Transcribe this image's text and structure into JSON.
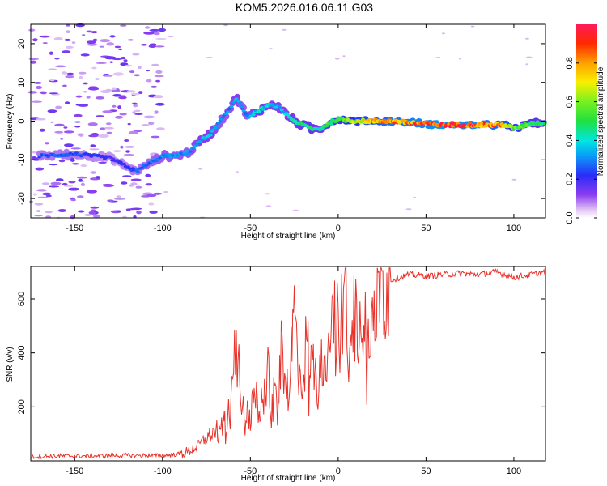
{
  "title": "KOM5.2026.016.06.11.G03",
  "chart_data": [
    {
      "type": "heatmap",
      "name": "spectrogram",
      "xlabel": "Height of straight line (km)",
      "ylabel": "Frequency (Hz)",
      "xlim": [
        -175,
        118
      ],
      "ylim": [
        -25,
        25
      ],
      "xticks": [
        -150,
        -100,
        -50,
        0,
        50,
        100
      ],
      "yticks": [
        -20,
        -10,
        0,
        10,
        20
      ],
      "ridge": {
        "x": [
          -170,
          -150,
          -130,
          -115,
          -100,
          -92,
          -85,
          -78,
          -72,
          -67,
          -62,
          -58,
          -55,
          -52,
          -48,
          -44,
          -40,
          -35,
          -30,
          -25,
          -20,
          -15,
          -10,
          -7,
          -3,
          0,
          10,
          30,
          60,
          80,
          95,
          100,
          110,
          118
        ],
        "y": [
          -9,
          -8.5,
          -9.5,
          -13,
          -9,
          -9,
          -8,
          -5,
          -3,
          0,
          3,
          6,
          4,
          1,
          2,
          3,
          4,
          4,
          2,
          0,
          -1,
          -2,
          -2,
          -1,
          0,
          0.5,
          0,
          0,
          -1,
          -1,
          -1,
          -2,
          -0.5,
          -0.5
        ],
        "amplitude": [
          0.25,
          0.25,
          0.2,
          0.25,
          0.3,
          0.3,
          0.3,
          0.35,
          0.35,
          0.3,
          0.3,
          0.35,
          0.3,
          0.3,
          0.35,
          0.4,
          0.35,
          0.35,
          0.35,
          0.4,
          0.45,
          0.45,
          0.4,
          0.5,
          0.5,
          0.55,
          0.65,
          0.8,
          0.9,
          0.85,
          0.75,
          0.55,
          0.5,
          0.45
        ]
      },
      "colorbar": {
        "label": "Normalized spectral amplitude",
        "range": [
          0,
          1
        ],
        "ticks": [
          "0.0",
          "0.2",
          "0.4",
          "0.6",
          "0.8"
        ]
      }
    },
    {
      "type": "line",
      "name": "snr",
      "xlabel": "Height of straight line (km)",
      "ylabel": "SNR (v/v)",
      "xlim": [
        -175,
        118
      ],
      "ylim": [
        0,
        720
      ],
      "xticks": [
        -150,
        -100,
        -50,
        0,
        50,
        100
      ],
      "yticks": [
        200,
        400,
        600
      ],
      "series": [
        {
          "name": "SNR",
          "color": "#e8322a",
          "x": [
            -175,
            -160,
            -140,
            -120,
            -100,
            -90,
            -85,
            -80,
            -75,
            -70,
            -65,
            -62,
            -60,
            -58,
            -57,
            -56,
            -55,
            -53,
            -50,
            -47,
            -45,
            -42,
            -40,
            -38,
            -35,
            -32,
            -30,
            -28,
            -25,
            -22,
            -20,
            -18,
            -15,
            -12,
            -10,
            -8,
            -6,
            -4,
            -2,
            0,
            2,
            4,
            6,
            8,
            10,
            12,
            15,
            18,
            20,
            25,
            30,
            35,
            40,
            50,
            60,
            70,
            80,
            90,
            100,
            110,
            118
          ],
          "y": [
            15,
            18,
            18,
            20,
            20,
            25,
            35,
            55,
            85,
            110,
            140,
            190,
            280,
            450,
            490,
            300,
            200,
            180,
            170,
            240,
            180,
            260,
            350,
            190,
            280,
            420,
            300,
            270,
            560,
            330,
            300,
            450,
            350,
            420,
            520,
            300,
            450,
            480,
            520,
            500,
            560,
            620,
            520,
            580,
            600,
            470,
            640,
            550,
            610,
            640,
            670,
            680,
            690,
            685,
            690,
            695,
            690,
            700,
            680,
            690,
            700
          ]
        }
      ]
    }
  ]
}
